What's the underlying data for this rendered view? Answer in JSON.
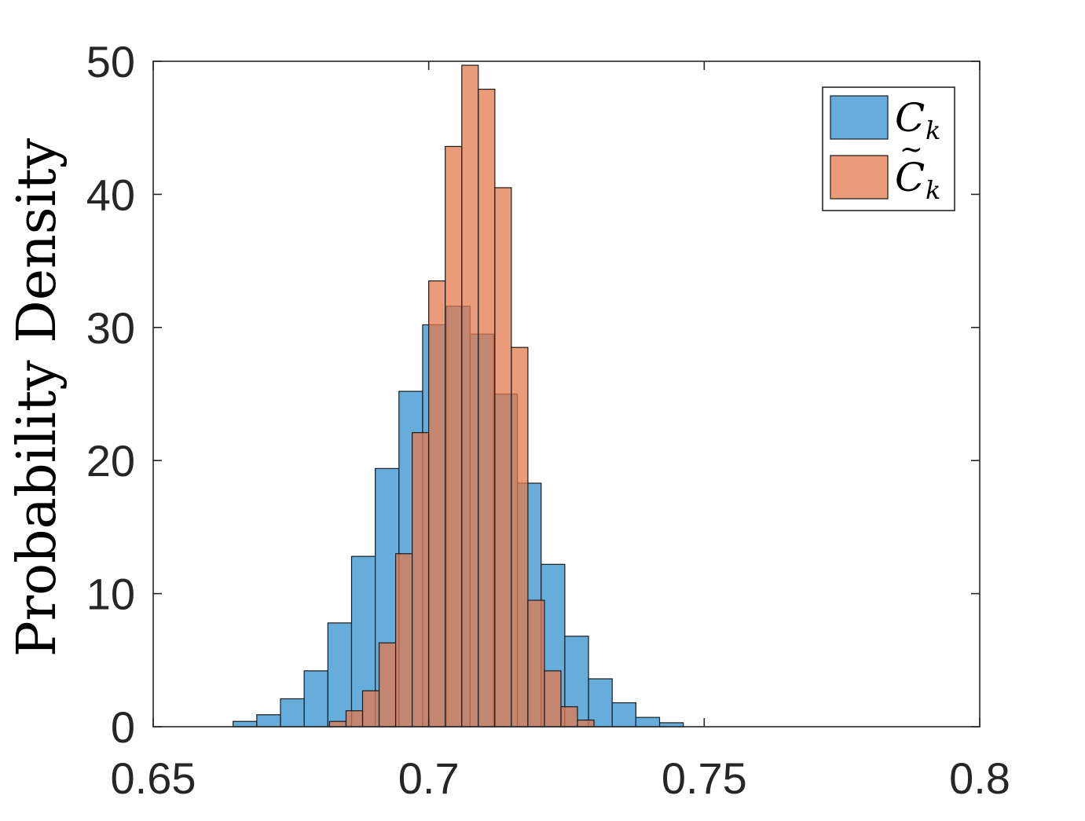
{
  "chart_data": {
    "type": "bar",
    "histogram": true,
    "xlabel": "",
    "ylabel": "Probability Density",
    "xlim": [
      0.65,
      0.8
    ],
    "ylim": [
      0,
      50
    ],
    "xticks": [
      0.65,
      0.7,
      0.75,
      0.8
    ],
    "xtick_labels": [
      "0.65",
      "0.7",
      "0.75",
      "0.8"
    ],
    "yticks": [
      0,
      10,
      20,
      30,
      40,
      50
    ],
    "ytick_labels": [
      "0",
      "10",
      "20",
      "30",
      "40",
      "50"
    ],
    "grid": false,
    "legend_position": "top-right",
    "series": [
      {
        "name": "C_k",
        "legend_base": "C",
        "legend_sub": "k",
        "legend_tilde": false,
        "color": "#4C9FD6",
        "opacity": 0.85,
        "bin_edges": [
          0.6645,
          0.6688,
          0.6731,
          0.6774,
          0.6817,
          0.686,
          0.6903,
          0.6946,
          0.6989,
          0.7032,
          0.7075,
          0.7118,
          0.7161,
          0.7204,
          0.7247,
          0.729,
          0.7333,
          0.7376,
          0.7419,
          0.7462
        ],
        "values": [
          0.4,
          0.9,
          2.1,
          4.2,
          7.8,
          12.8,
          19.4,
          25.2,
          30.2,
          31.6,
          29.5,
          25.0,
          18.3,
          12.2,
          6.8,
          3.6,
          1.8,
          0.7,
          0.3
        ]
      },
      {
        "name": "C̃_k",
        "legend_base": "C",
        "legend_sub": "k",
        "legend_tilde": true,
        "color": "#E27A4E",
        "opacity": 0.75,
        "bin_edges": [
          0.682,
          0.685,
          0.688,
          0.691,
          0.694,
          0.697,
          0.7,
          0.703,
          0.706,
          0.709,
          0.712,
          0.715,
          0.718,
          0.721,
          0.724,
          0.727,
          0.73
        ],
        "values": [
          0.4,
          1.2,
          2.7,
          6.3,
          13.0,
          22.1,
          33.5,
          43.6,
          49.7,
          47.9,
          40.5,
          28.5,
          9.5,
          4.2,
          1.5,
          0.5
        ]
      }
    ]
  }
}
